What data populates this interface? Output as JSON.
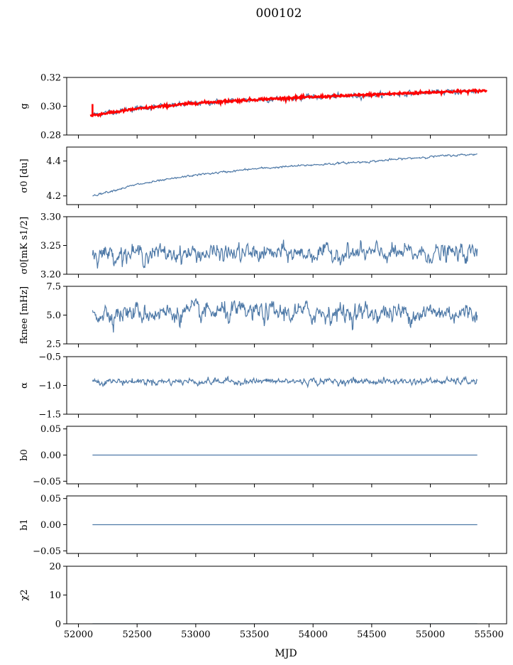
{
  "figure": {
    "title": "000102",
    "xlabel": "MJD"
  },
  "colors": {
    "series": "#4e79a7",
    "fit": "#ff0000",
    "axes": "#000000"
  },
  "chart_data": [
    {
      "type": "line",
      "ylabel": "g",
      "ylim": [
        0.28,
        0.32
      ],
      "yticks": [
        "0.28",
        "0.30",
        "0.32"
      ],
      "xlim": [
        51900,
        55650
      ],
      "series": [
        {
          "kind": "noisy-trend",
          "x_range": [
            52120,
            55400
          ],
          "trend": [
            [
              52120,
              0.2942
            ],
            [
              52500,
              0.2985
            ],
            [
              53000,
              0.302
            ],
            [
              53500,
              0.3045
            ],
            [
              54000,
              0.3062
            ],
            [
              54500,
              0.3078
            ],
            [
              55000,
              0.3095
            ],
            [
              55400,
              0.3105
            ]
          ],
          "noise": 0.0009
        },
        {
          "kind": "fit",
          "x_range": [
            52100,
            55480
          ],
          "trend": [
            [
              52100,
              0.2935
            ],
            [
              52500,
              0.2982
            ],
            [
              53000,
              0.3022
            ],
            [
              53500,
              0.3046
            ],
            [
              54000,
              0.3064
            ],
            [
              54500,
              0.308
            ],
            [
              55000,
              0.3097
            ],
            [
              55480,
              0.3108
            ]
          ],
          "spike": {
            "x": 52120,
            "y_top": 0.3015,
            "y_bottom": 0.2925
          }
        }
      ]
    },
    {
      "type": "line",
      "ylabel": "σ0 [du]",
      "ylim": [
        4.15,
        4.48
      ],
      "yticks": [
        "4.2",
        "4.4"
      ],
      "xlim": [
        51900,
        55650
      ],
      "series": [
        {
          "kind": "noisy-trend",
          "x_range": [
            52120,
            55400
          ],
          "trend": [
            [
              52120,
              4.202
            ],
            [
              52500,
              4.265
            ],
            [
              53000,
              4.32
            ],
            [
              53500,
              4.355
            ],
            [
              54000,
              4.378
            ],
            [
              54500,
              4.398
            ],
            [
              55000,
              4.425
            ],
            [
              55400,
              4.44
            ]
          ],
          "noise": 0.003
        }
      ]
    },
    {
      "type": "line",
      "ylabel": "σ0[mK s1/2]",
      "ylim": [
        3.2,
        3.3
      ],
      "yticks": [
        "3.20",
        "3.25",
        "3.30"
      ],
      "xlim": [
        51900,
        55650
      ],
      "series": [
        {
          "kind": "noise",
          "x_range": [
            52120,
            55400
          ],
          "mean": 3.236,
          "noise": 0.008
        }
      ]
    },
    {
      "type": "line",
      "ylabel": "fknee [mHz]",
      "ylim": [
        2.5,
        7.5
      ],
      "yticks": [
        "2.5",
        "5.0",
        "7.5"
      ],
      "xlim": [
        51900,
        55650
      ],
      "series": [
        {
          "kind": "noise",
          "x_range": [
            52120,
            55400
          ],
          "mean": 5.2,
          "noise": 0.45
        }
      ]
    },
    {
      "type": "line",
      "ylabel": "α",
      "ylim": [
        -1.5,
        -0.5
      ],
      "yticks": [
        "−1.5",
        "−1.0",
        "−0.5"
      ],
      "xlim": [
        51900,
        55650
      ],
      "series": [
        {
          "kind": "noise",
          "x_range": [
            52120,
            55400
          ],
          "mean": -0.93,
          "noise": 0.03
        }
      ]
    },
    {
      "type": "line",
      "ylabel": "b0",
      "ylim": [
        -0.055,
        0.055
      ],
      "yticks": [
        "−0.05",
        "0.00",
        "0.05"
      ],
      "xlim": [
        51900,
        55650
      ],
      "series": [
        {
          "kind": "flat",
          "x_range": [
            52120,
            55400
          ],
          "value": 0.0
        }
      ]
    },
    {
      "type": "line",
      "ylabel": "b1",
      "ylim": [
        -0.055,
        0.055
      ],
      "yticks": [
        "−0.05",
        "0.00",
        "0.05"
      ],
      "xlim": [
        51900,
        55650
      ],
      "series": [
        {
          "kind": "flat",
          "x_range": [
            52120,
            55400
          ],
          "value": 0.0
        }
      ]
    },
    {
      "type": "line",
      "ylabel": "χ2",
      "ylim": [
        0,
        20
      ],
      "yticks": [
        "0",
        "10",
        "20"
      ],
      "xlim": [
        51900,
        55650
      ],
      "xticks": [
        "52000",
        "52500",
        "53000",
        "53500",
        "54000",
        "54500",
        "55000",
        "55500"
      ],
      "series": [
        {
          "kind": "flat",
          "x_range": [
            52120,
            55400
          ],
          "value": 0.0
        }
      ]
    }
  ]
}
